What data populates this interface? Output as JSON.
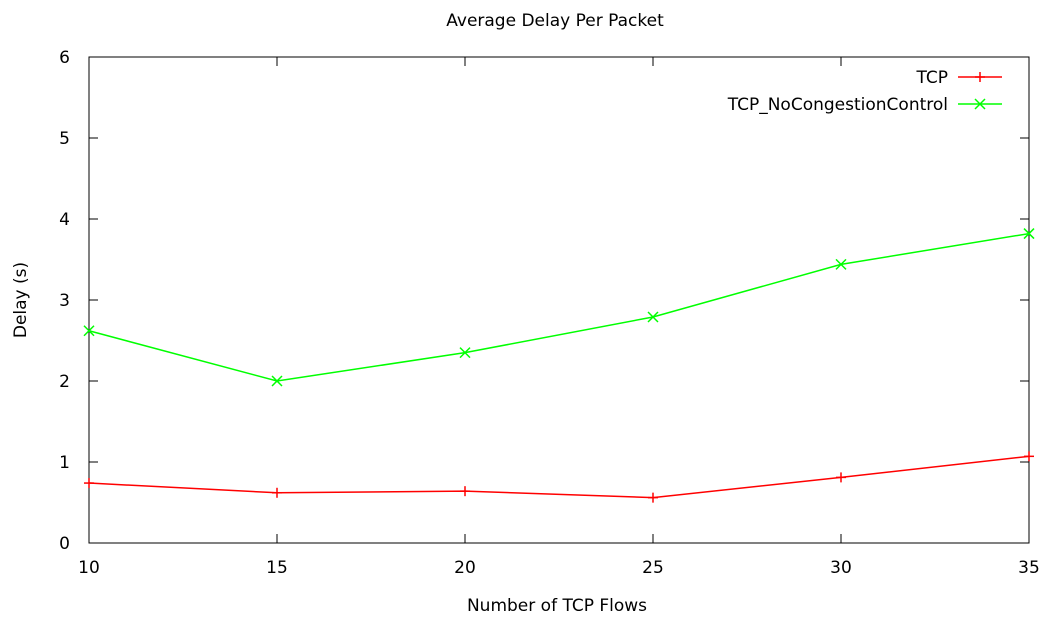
{
  "chart_data": {
    "type": "line",
    "title": "Average Delay Per Packet",
    "xlabel": "Number of TCP Flows",
    "ylabel": "Delay (s)",
    "x": [
      10,
      15,
      20,
      25,
      30,
      35
    ],
    "xlim": [
      10,
      35
    ],
    "ylim": [
      0,
      6
    ],
    "xticks": [
      10,
      15,
      20,
      25,
      30,
      35
    ],
    "yticks": [
      0,
      1,
      2,
      3,
      4,
      5,
      6
    ],
    "grid": false,
    "legend_position": "top-right",
    "series": [
      {
        "name": "TCP",
        "color": "#ff0000",
        "marker": "plus",
        "values": [
          0.74,
          0.62,
          0.64,
          0.56,
          0.81,
          1.07
        ]
      },
      {
        "name": "TCP_NoCongestionControl",
        "color": "#00ff00",
        "marker": "cross",
        "values": [
          2.62,
          2.0,
          2.35,
          2.79,
          3.44,
          3.82
        ]
      }
    ]
  }
}
